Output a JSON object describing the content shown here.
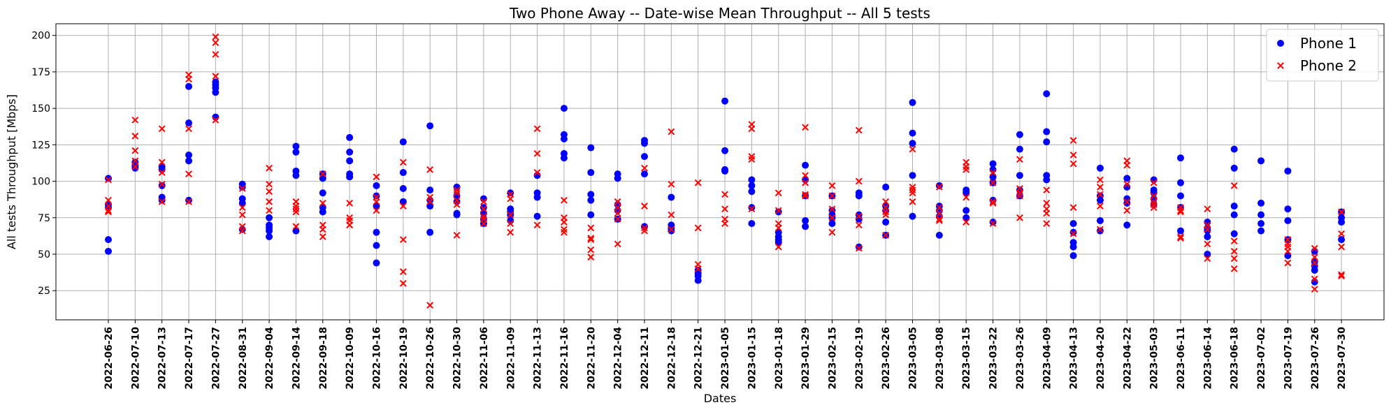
{
  "chart_data": {
    "type": "scatter",
    "title": "Two Phone Away -- Date-wise Mean Throughput -- All 5 tests",
    "xlabel": "Dates",
    "ylabel": "All tests Throughput [Mbps]",
    "ylim": [
      5,
      208
    ],
    "yticks": [
      25,
      50,
      75,
      100,
      125,
      150,
      175,
      200
    ],
    "grid": true,
    "legend_position": "top-right",
    "categories": [
      "2022-06-26",
      "2022-07-10",
      "2022-07-13",
      "2022-07-17",
      "2022-07-27",
      "2022-08-31",
      "2022-09-04",
      "2022-09-14",
      "2022-09-18",
      "2022-10-09",
      "2022-10-16",
      "2022-10-19",
      "2022-10-26",
      "2022-10-30",
      "2022-11-06",
      "2022-11-09",
      "2022-11-13",
      "2022-11-16",
      "2022-11-20",
      "2022-12-04",
      "2022-12-11",
      "2022-12-18",
      "2022-12-21",
      "2023-01-05",
      "2023-01-15",
      "2023-01-18",
      "2023-01-29",
      "2023-02-15",
      "2023-02-19",
      "2023-02-26",
      "2023-03-05",
      "2023-03-08",
      "2023-03-15",
      "2023-03-22",
      "2023-03-26",
      "2023-04-09",
      "2023-04-13",
      "2023-04-20",
      "2023-04-22",
      "2023-05-03",
      "2023-06-11",
      "2023-06-14",
      "2023-06-18",
      "2023-07-02",
      "2023-07-19",
      "2023-07-26",
      "2023-07-30"
    ],
    "series": [
      {
        "name": "Phone 1",
        "color": "#0000ff",
        "marker": "circle",
        "values": [
          [
            102,
            84,
            82,
            60,
            52
          ],
          [
            113,
            110,
            109,
            111
          ],
          [
            110,
            108,
            97,
            89,
            87
          ],
          [
            165,
            140,
            118,
            114,
            87
          ],
          [
            168,
            166,
            164,
            161,
            144
          ],
          [
            98,
            96,
            88,
            85,
            67
          ],
          [
            75,
            70,
            68,
            66,
            62
          ],
          [
            124,
            120,
            107,
            104,
            66
          ],
          [
            105,
            102,
            92,
            82,
            79
          ],
          [
            130,
            120,
            114,
            105,
            103
          ],
          [
            97,
            90,
            83,
            65,
            56,
            44
          ],
          [
            127,
            106,
            95,
            86
          ],
          [
            138,
            94,
            87,
            83,
            65
          ],
          [
            96,
            90,
            86,
            78,
            77
          ],
          [
            88,
            82,
            78,
            74,
            71
          ],
          [
            92,
            81,
            79,
            77,
            73
          ],
          [
            104,
            92,
            89,
            76
          ],
          [
            150,
            132,
            129,
            119,
            116
          ],
          [
            123,
            106,
            91,
            87,
            77
          ],
          [
            105,
            102,
            84,
            80,
            74
          ],
          [
            128,
            126,
            117,
            105,
            69
          ],
          [
            89,
            70,
            68,
            66
          ],
          [
            39,
            37,
            35,
            32
          ],
          [
            155,
            121,
            108,
            107
          ],
          [
            101,
            97,
            93,
            82,
            71
          ],
          [
            79,
            65,
            62,
            60,
            58
          ],
          [
            111,
            101,
            90,
            73,
            69
          ],
          [
            90,
            80,
            77,
            75,
            71
          ],
          [
            92,
            90,
            77,
            74,
            55
          ],
          [
            96,
            83,
            80,
            72,
            63
          ],
          [
            154,
            133,
            126,
            104,
            76
          ],
          [
            97,
            83,
            80,
            76,
            63
          ],
          [
            94,
            92,
            80,
            75
          ],
          [
            112,
            108,
            103,
            99,
            87,
            72
          ],
          [
            132,
            122,
            104,
            94,
            90
          ],
          [
            160,
            134,
            127,
            104,
            101
          ],
          [
            71,
            65,
            58,
            55,
            49
          ],
          [
            109,
            90,
            87,
            73,
            66
          ],
          [
            102,
            96,
            88,
            85,
            70
          ],
          [
            101,
            94,
            92,
            88,
            84
          ],
          [
            116,
            99,
            90,
            82,
            66
          ],
          [
            72,
            68,
            66,
            62,
            50
          ],
          [
            122,
            109,
            83,
            77,
            64
          ],
          [
            114,
            85,
            77,
            71,
            66
          ],
          [
            107,
            81,
            73,
            60,
            49
          ],
          [
            52,
            45,
            42,
            39,
            31
          ],
          [
            79,
            75,
            72,
            60
          ]
        ]
      },
      {
        "name": "Phone 2",
        "color": "#ff0000",
        "marker": "x",
        "values": [
          [
            101,
            87,
            83,
            80,
            79
          ],
          [
            142,
            131,
            121,
            114,
            110
          ],
          [
            136,
            113,
            106,
            98,
            86
          ],
          [
            173,
            170,
            136,
            105,
            86
          ],
          [
            199,
            195,
            187,
            172,
            142
          ],
          [
            95,
            82,
            77,
            69,
            66
          ],
          [
            109,
            98,
            93,
            86,
            80
          ],
          [
            86,
            83,
            81,
            79,
            69
          ],
          [
            105,
            85,
            70,
            67,
            62
          ],
          [
            85,
            75,
            73,
            70,
            70
          ],
          [
            103,
            89,
            86,
            80
          ],
          [
            113,
            83,
            60,
            38,
            30
          ],
          [
            108,
            89,
            86,
            15
          ],
          [
            94,
            92,
            87,
            84,
            63
          ],
          [
            86,
            81,
            76,
            74,
            71
          ],
          [
            91,
            88,
            77,
            71,
            65
          ],
          [
            136,
            119,
            106,
            70
          ],
          [
            87,
            75,
            72,
            67,
            65
          ],
          [
            68,
            61,
            60,
            53,
            48
          ],
          [
            86,
            82,
            78,
            74,
            57
          ],
          [
            109,
            83,
            68,
            66
          ],
          [
            134,
            98,
            77,
            67
          ],
          [
            99,
            68,
            43,
            40
          ],
          [
            91,
            81,
            74,
            71
          ],
          [
            139,
            136,
            117,
            115,
            81
          ],
          [
            92,
            80,
            71,
            68,
            55
          ],
          [
            137,
            104,
            99,
            91,
            90
          ],
          [
            97,
            90,
            81,
            75,
            65
          ],
          [
            135,
            100,
            76,
            70,
            54
          ],
          [
            86,
            82,
            79,
            77,
            63
          ],
          [
            122,
            96,
            94,
            92,
            86
          ],
          [
            96,
            82,
            78,
            74,
            73
          ],
          [
            113,
            110,
            108,
            89,
            72
          ],
          [
            106,
            99,
            86,
            85,
            71
          ],
          [
            115,
            95,
            92,
            90,
            75
          ],
          [
            94,
            85,
            81,
            78,
            71
          ],
          [
            128,
            118,
            112,
            82,
            64
          ],
          [
            101,
            96,
            91,
            83,
            67
          ],
          [
            114,
            111,
            98,
            86,
            80
          ],
          [
            99,
            90,
            86,
            84,
            82
          ],
          [
            82,
            80,
            79,
            62,
            61
          ],
          [
            81,
            70,
            67,
            57,
            47
          ],
          [
            97,
            59,
            52,
            47,
            40
          ],
          [],
          [
            60,
            57,
            55,
            52,
            44
          ],
          [
            54,
            48,
            44,
            33,
            26
          ],
          [
            79,
            64,
            55,
            36,
            35
          ]
        ]
      }
    ]
  }
}
